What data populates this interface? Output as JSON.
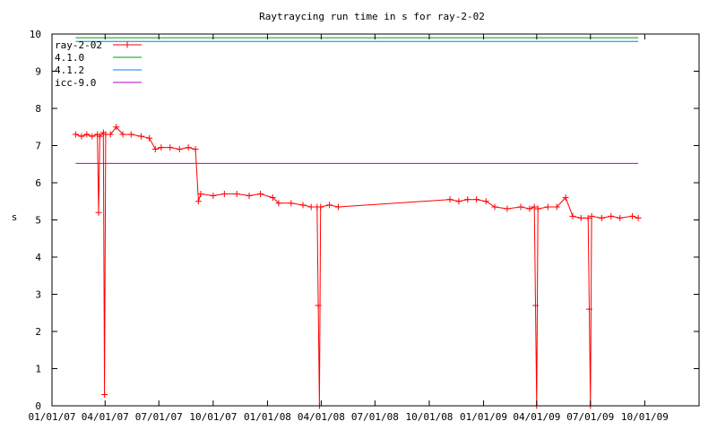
{
  "chart_data": {
    "type": "line",
    "title": "Raytraycing run time in s for ray-2-02",
    "xlabel": "",
    "ylabel": "s",
    "ylim": [
      0,
      10
    ],
    "xlim": [
      "2007-01-01",
      "2010-01-01"
    ],
    "x_ticks": [
      "01/01/07",
      "04/01/07",
      "07/01/07",
      "10/01/07",
      "01/01/08",
      "04/01/08",
      "07/01/08",
      "10/01/08",
      "01/01/09",
      "04/01/09",
      "07/01/09",
      "10/01/09"
    ],
    "y_ticks": [
      "0",
      "1",
      "2",
      "3",
      "4",
      "5",
      "6",
      "7",
      "8",
      "9",
      "10"
    ],
    "legend_position": "top-left",
    "grid": false,
    "series": [
      {
        "name": "ray-2-02",
        "color": "#ff0000",
        "marker": "plus",
        "points": [
          [
            "2007-02-10",
            7.3
          ],
          [
            "2007-02-20",
            7.25
          ],
          [
            "2007-03-01",
            7.3
          ],
          [
            "2007-03-10",
            7.25
          ],
          [
            "2007-03-19",
            7.3
          ],
          [
            "2007-03-21",
            5.2
          ],
          [
            "2007-03-23",
            7.25
          ],
          [
            "2007-03-29",
            7.35
          ],
          [
            "2007-03-31",
            0.3
          ],
          [
            "2007-04-02",
            7.3
          ],
          [
            "2007-04-10",
            7.3
          ],
          [
            "2007-04-20",
            7.5
          ],
          [
            "2007-05-01",
            7.3
          ],
          [
            "2007-05-15",
            7.3
          ],
          [
            "2007-06-01",
            7.25
          ],
          [
            "2007-06-15",
            7.2
          ],
          [
            "2007-06-25",
            6.9
          ],
          [
            "2007-07-05",
            6.95
          ],
          [
            "2007-07-20",
            6.95
          ],
          [
            "2007-08-05",
            6.9
          ],
          [
            "2007-08-20",
            6.95
          ],
          [
            "2007-09-01",
            6.9
          ],
          [
            "2007-09-06",
            5.5
          ],
          [
            "2007-09-10",
            5.7
          ],
          [
            "2007-10-01",
            5.65
          ],
          [
            "2007-10-20",
            5.7
          ],
          [
            "2007-11-10",
            5.7
          ],
          [
            "2007-12-01",
            5.65
          ],
          [
            "2007-12-20",
            5.7
          ],
          [
            "2008-01-10",
            5.6
          ],
          [
            "2008-01-20",
            5.45
          ],
          [
            "2008-02-10",
            5.45
          ],
          [
            "2008-03-01",
            5.4
          ],
          [
            "2008-03-15",
            5.35
          ],
          [
            "2008-03-25",
            5.35
          ],
          [
            "2008-03-27",
            2.7
          ],
          [
            "2008-03-29",
            0.0
          ],
          [
            "2008-03-31",
            5.35
          ],
          [
            "2008-04-15",
            5.4
          ],
          [
            "2008-04-30",
            5.35
          ],
          [
            "2008-11-05",
            5.55
          ],
          [
            "2008-11-20",
            5.5
          ],
          [
            "2008-12-05",
            5.55
          ],
          [
            "2008-12-20",
            5.55
          ],
          [
            "2009-01-05",
            5.5
          ],
          [
            "2009-01-20",
            5.35
          ],
          [
            "2009-02-10",
            5.3
          ],
          [
            "2009-03-05",
            5.35
          ],
          [
            "2009-03-20",
            5.3
          ],
          [
            "2009-03-28",
            5.35
          ],
          [
            "2009-03-30",
            2.7
          ],
          [
            "2009-04-01",
            0.0
          ],
          [
            "2009-04-03",
            5.3
          ],
          [
            "2009-04-20",
            5.35
          ],
          [
            "2009-05-05",
            5.35
          ],
          [
            "2009-05-20",
            5.6
          ],
          [
            "2009-06-01",
            5.1
          ],
          [
            "2009-06-15",
            5.05
          ],
          [
            "2009-06-27",
            5.05
          ],
          [
            "2009-06-29",
            2.6
          ],
          [
            "2009-07-01",
            0.0
          ],
          [
            "2009-07-03",
            5.1
          ],
          [
            "2009-07-20",
            5.05
          ],
          [
            "2009-08-05",
            5.1
          ],
          [
            "2009-08-20",
            5.05
          ],
          [
            "2009-09-10",
            5.1
          ],
          [
            "2009-09-20",
            5.05
          ]
        ]
      },
      {
        "name": "4.1.0",
        "color": "#00a000",
        "points": [
          [
            "2007-02-10",
            9.9
          ],
          [
            "2009-09-20",
            9.9
          ]
        ]
      },
      {
        "name": "4.1.2",
        "color": "#0080ff",
        "points": [
          [
            "2007-02-10",
            9.8
          ],
          [
            "2009-09-20",
            9.8
          ]
        ]
      },
      {
        "name": "icc-9.0",
        "color": "#c000c0",
        "points": [
          [
            "2007-02-10",
            6.52
          ],
          [
            "2009-09-20",
            6.52
          ]
        ]
      }
    ]
  }
}
